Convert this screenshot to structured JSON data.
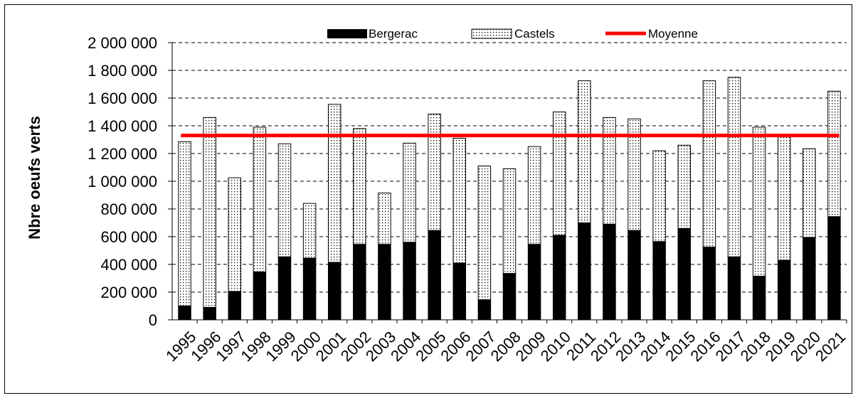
{
  "chart_data": {
    "type": "bar",
    "stacked": true,
    "ylabel": "Nbre oeufs verts",
    "xlabel": "",
    "ylim": [
      0,
      2000000
    ],
    "y_ticks": [
      "0",
      "200 000",
      "400 000",
      "600 000",
      "800 000",
      "1 000 000",
      "1 200 000",
      "1 400 000",
      "1 600 000",
      "1 800 000",
      "2 000 000"
    ],
    "grid": "horizontal-dashed",
    "legend_position": "top",
    "categories": [
      "1995",
      "1996",
      "1997",
      "1998",
      "1999",
      "2000",
      "2001",
      "2002",
      "2003",
      "2004",
      "2005",
      "2006",
      "2007",
      "2008",
      "2009",
      "2010",
      "2011",
      "2012",
      "2013",
      "2014",
      "2015",
      "2016",
      "2017",
      "2018",
      "2019",
      "2020",
      "2021"
    ],
    "series": [
      {
        "name": "Bergerac",
        "color": "#000000",
        "values": [
          100000,
          90000,
          205000,
          345000,
          455000,
          445000,
          415000,
          545000,
          545000,
          560000,
          645000,
          410000,
          145000,
          335000,
          545000,
          610000,
          700000,
          690000,
          645000,
          565000,
          660000,
          525000,
          455000,
          315000,
          430000,
          595000,
          745000
        ]
      },
      {
        "name": "Castels",
        "pattern": "dotted",
        "values": [
          1185000,
          1370000,
          820000,
          1045000,
          815000,
          395000,
          1140000,
          835000,
          370000,
          715000,
          840000,
          900000,
          965000,
          755000,
          705000,
          890000,
          1025000,
          770000,
          805000,
          655000,
          600000,
          1200000,
          1295000,
          1075000,
          890000,
          640000,
          905000
        ]
      }
    ],
    "average": {
      "name": "Moyenne",
      "value": 1330000,
      "color": "#ff0000"
    }
  }
}
